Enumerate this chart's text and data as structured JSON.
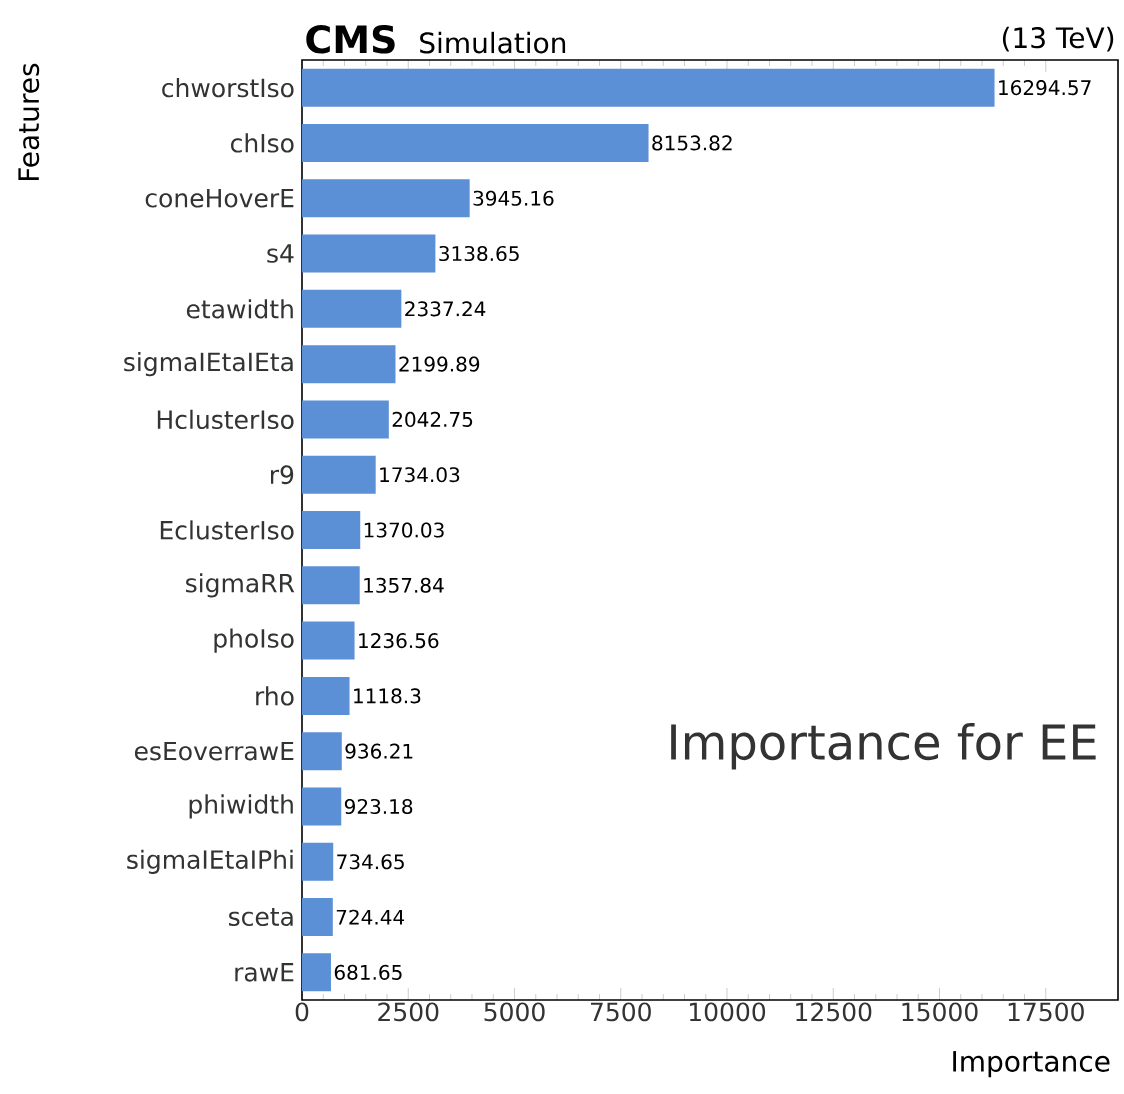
{
  "chart_data": {
    "type": "bar",
    "orientation": "horizontal",
    "title": "CMS",
    "subtitle": "Simulation",
    "xlabel": "Importance",
    "ylabel": "Features",
    "annotations": [
      "(13 TeV)",
      "Importance for EE"
    ],
    "categories": [
      "chworstIso",
      "chIso",
      "coneHoverE",
      "s4",
      "etawidth",
      "sigmaIEtaIEta",
      "HclusterIso",
      "r9",
      "EclusterIso",
      "sigmaRR",
      "phoIso",
      "rho",
      "esEoverrawE",
      "phiwidth",
      "sigmaIEtaIPhi",
      "sceta",
      "rawE"
    ],
    "values": [
      16294.57,
      8153.82,
      3945.16,
      3138.65,
      2337.24,
      2199.89,
      2042.75,
      1734.03,
      1370.03,
      1357.84,
      1236.56,
      1118.3,
      936.21,
      923.18,
      734.65,
      724.44,
      681.65
    ],
    "color": "#5b8fd6",
    "data_labels": true,
    "xlim": [
      0,
      19200
    ],
    "xticks": [
      0,
      2500,
      5000,
      7500,
      10000,
      12500,
      15000,
      17500
    ]
  }
}
